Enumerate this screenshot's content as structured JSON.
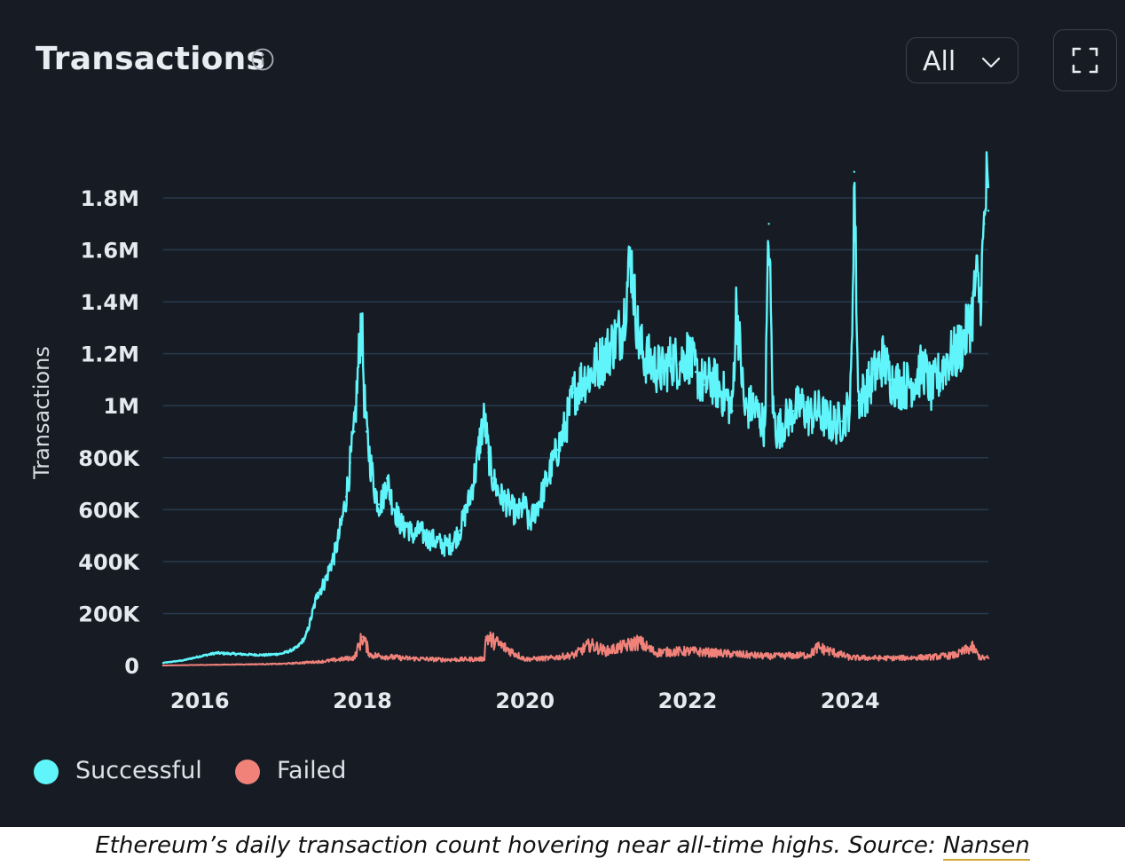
{
  "header": {
    "title": "Transactions",
    "range_value": "All"
  },
  "icons": {
    "info": "info-icon",
    "dropdown": "chevron-down-icon",
    "fullscreen": "fullscreen-icon"
  },
  "colors": {
    "background": "#171c24",
    "successful": "#5ff5fa",
    "failed": "#f0827a",
    "grid": "#273a4f",
    "text": "#e9edf2"
  },
  "legend": [
    {
      "name": "Successful",
      "color": "#5ff5fa"
    },
    {
      "name": "Failed",
      "color": "#f0827a"
    }
  ],
  "caption": {
    "text": "Ethereum’s daily transaction count hovering near all-time highs. Source: ",
    "link": "Nansen"
  },
  "chart_data": {
    "type": "line",
    "title": "Transactions",
    "xlabel": "",
    "ylabel": "Transactions",
    "ylim": [
      0,
      1800000
    ],
    "xlim": [
      2015.55,
      2025.7
    ],
    "grid": true,
    "legend_position": "bottom-left",
    "y_ticks": [
      {
        "value": 0,
        "label": "0"
      },
      {
        "value": 200000,
        "label": "200K"
      },
      {
        "value": 400000,
        "label": "400K"
      },
      {
        "value": 600000,
        "label": "600K"
      },
      {
        "value": 800000,
        "label": "800K"
      },
      {
        "value": 1000000,
        "label": "1M"
      },
      {
        "value": 1200000,
        "label": "1.2M"
      },
      {
        "value": 1400000,
        "label": "1.4M"
      },
      {
        "value": 1600000,
        "label": "1.6M"
      },
      {
        "value": 1800000,
        "label": "1.8M"
      }
    ],
    "x_ticks": [
      {
        "value": 2016,
        "label": "2016"
      },
      {
        "value": 2018,
        "label": "2018"
      },
      {
        "value": 2020,
        "label": "2020"
      },
      {
        "value": 2022,
        "label": "2022"
      },
      {
        "value": 2024,
        "label": "2024"
      }
    ],
    "series": [
      {
        "name": "Successful",
        "color": "#5ff5fa",
        "x": [
          2015.55,
          2015.8,
          2016.0,
          2016.2,
          2016.4,
          2016.6,
          2016.8,
          2017.0,
          2017.1,
          2017.2,
          2017.3,
          2017.35,
          2017.4,
          2017.45,
          2017.5,
          2017.55,
          2017.6,
          2017.65,
          2017.7,
          2017.75,
          2017.8,
          2017.85,
          2017.9,
          2017.95,
          2017.98,
          2018.0,
          2018.02,
          2018.05,
          2018.1,
          2018.15,
          2018.2,
          2018.25,
          2018.3,
          2018.35,
          2018.4,
          2018.45,
          2018.5,
          2018.55,
          2018.6,
          2018.65,
          2018.7,
          2018.8,
          2018.9,
          2019.0,
          2019.1,
          2019.2,
          2019.3,
          2019.4,
          2019.45,
          2019.5,
          2019.55,
          2019.6,
          2019.7,
          2019.8,
          2019.9,
          2020.0,
          2020.05,
          2020.1,
          2020.2,
          2020.3,
          2020.4,
          2020.5,
          2020.6,
          2020.7,
          2020.8,
          2020.9,
          2021.0,
          2021.1,
          2021.2,
          2021.3,
          2021.35,
          2021.4,
          2021.45,
          2021.5,
          2021.6,
          2021.7,
          2021.8,
          2021.9,
          2022.0,
          2022.1,
          2022.2,
          2022.3,
          2022.4,
          2022.5,
          2022.55,
          2022.6,
          2022.7,
          2022.8,
          2022.9,
          2022.95,
          2023.0,
          2023.05,
          2023.1,
          2023.2,
          2023.3,
          2023.4,
          2023.5,
          2023.6,
          2023.7,
          2023.8,
          2023.9,
          2024.0,
          2024.02,
          2024.05,
          2024.1,
          2024.2,
          2024.3,
          2024.4,
          2024.5,
          2024.6,
          2024.7,
          2024.8,
          2024.9,
          2025.0,
          2025.1,
          2025.2,
          2025.3,
          2025.4,
          2025.45,
          2025.5,
          2025.55,
          2025.6,
          2025.65,
          2025.68,
          2025.7
        ],
        "values": [
          10000,
          20000,
          35000,
          48000,
          45000,
          42000,
          40000,
          45000,
          55000,
          70000,
          110000,
          160000,
          220000,
          280000,
          300000,
          330000,
          380000,
          420000,
          480000,
          560000,
          650000,
          780000,
          900000,
          1150000,
          1320000,
          1250000,
          1050000,
          900000,
          780000,
          680000,
          620000,
          640000,
          720000,
          650000,
          600000,
          560000,
          530000,
          540000,
          510000,
          500000,
          520000,
          490000,
          480000,
          460000,
          470000,
          520000,
          620000,
          760000,
          880000,
          950000,
          820000,
          720000,
          650000,
          620000,
          580000,
          620000,
          540000,
          580000,
          650000,
          740000,
          830000,
          920000,
          1050000,
          1100000,
          1120000,
          1160000,
          1200000,
          1250000,
          1300000,
          1580000,
          1400000,
          1250000,
          1200000,
          1180000,
          1150000,
          1130000,
          1180000,
          1160000,
          1200000,
          1130000,
          1080000,
          1100000,
          1060000,
          1020000,
          980000,
          1400000,
          980000,
          1000000,
          950000,
          920000,
          1700000,
          980000,
          900000,
          940000,
          980000,
          1000000,
          960000,
          980000,
          950000,
          930000,
          940000,
          1000000,
          1200000,
          1900000,
          1020000,
          1060000,
          1120000,
          1180000,
          1100000,
          1080000,
          1080000,
          1100000,
          1150000,
          1060000,
          1120000,
          1180000,
          1200000,
          1250000,
          1300000,
          1350000,
          1500000,
          1400000,
          1700000,
          1850000,
          1750000
        ]
      },
      {
        "name": "Failed",
        "color": "#f0827a",
        "x": [
          2015.55,
          2016.0,
          2016.5,
          2017.0,
          2017.5,
          2017.9,
          2018.0,
          2018.1,
          2018.5,
          2019.0,
          2019.5,
          2019.52,
          2020.0,
          2020.3,
          2020.6,
          2020.8,
          2021.0,
          2021.4,
          2021.6,
          2022.0,
          2022.5,
          2023.0,
          2023.5,
          2023.6,
          2024.0,
          2024.5,
          2025.0,
          2025.3,
          2025.5,
          2025.6,
          2025.7
        ],
        "values": [
          0,
          2000,
          4000,
          6000,
          15000,
          30000,
          110000,
          40000,
          28000,
          22000,
          25000,
          110000,
          24000,
          28000,
          40000,
          80000,
          55000,
          90000,
          50000,
          55000,
          45000,
          35000,
          40000,
          70000,
          30000,
          28000,
          32000,
          40000,
          70000,
          30000,
          28000
        ]
      }
    ],
    "series_style": "noisy daily"
  }
}
